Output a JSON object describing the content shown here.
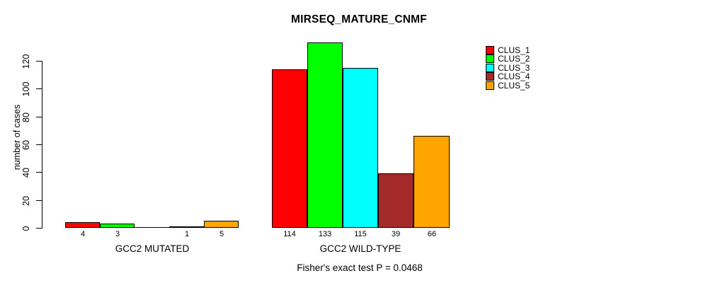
{
  "chart_data": {
    "type": "bar",
    "title": "MIRSEQ_MATURE_CNMF",
    "xlabel": "",
    "ylabel": "number of cases",
    "categories": [
      "GCC2 MUTATED",
      "GCC2 WILD-TYPE"
    ],
    "series": [
      {
        "name": "CLUS_1",
        "color": "#FF0000",
        "values": [
          4,
          114
        ]
      },
      {
        "name": "CLUS_2",
        "color": "#00FF00",
        "values": [
          3,
          133
        ]
      },
      {
        "name": "CLUS_3",
        "color": "#00FFFF",
        "values": [
          0,
          115
        ]
      },
      {
        "name": "CLUS_4",
        "color": "#A52A2A",
        "values": [
          1,
          39
        ]
      },
      {
        "name": "CLUS_5",
        "color": "#FFA500",
        "values": [
          5,
          66
        ]
      }
    ],
    "yticks": [
      0,
      20,
      40,
      60,
      80,
      100,
      120
    ],
    "ylim": [
      0,
      133
    ],
    "grid": false,
    "bar_value_labels": true,
    "legend_position": "right",
    "footnote": "Fisher's exact test P = 0.0468"
  }
}
